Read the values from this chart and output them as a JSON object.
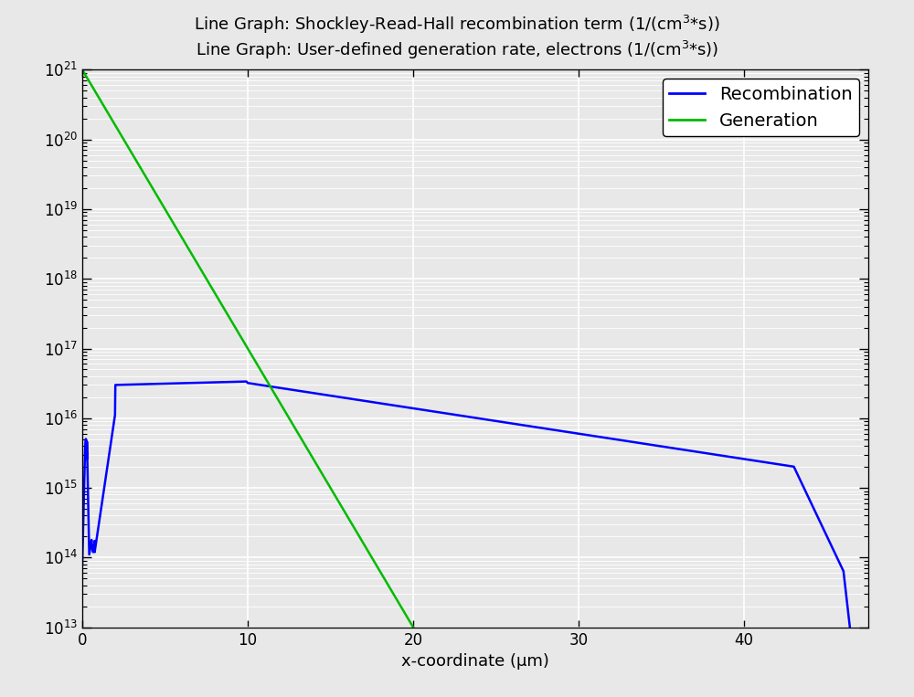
{
  "title_line1": "Line Graph: Shockley-Read-Hall recombination term (1/(cm³*s))",
  "title_line2": "Line Graph: User-defined generation rate, electrons (1/(cm³*s))",
  "xlabel": "x-coordinate (μm)",
  "xlim": [
    0,
    47.5
  ],
  "ylim": [
    10000000000000.0,
    1e+21
  ],
  "xticks": [
    0,
    10,
    20,
    30,
    40
  ],
  "legend_labels": [
    "Recombination",
    "Generation"
  ],
  "recomb_color": "#0000ff",
  "gen_color": "#00bb00",
  "background_color": "#e8e8e8",
  "plot_bg_color": "#e8e8e8",
  "grid_color": "#ffffff",
  "title_fontsize": 13,
  "axis_fontsize": 13,
  "legend_fontsize": 14,
  "tick_fontsize": 12
}
